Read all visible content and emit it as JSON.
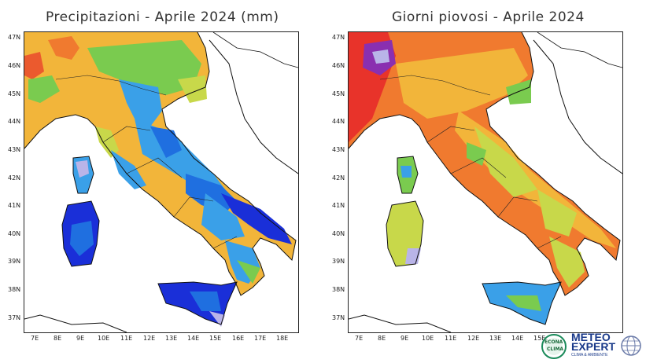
{
  "maps": [
    {
      "title": "Precipitazioni - Aprile 2024 (mm)",
      "lat_labels": [
        "47N",
        "46N",
        "45N",
        "44N",
        "43N",
        "42N",
        "41N",
        "40N",
        "39N",
        "38N",
        "37N"
      ],
      "lon_labels": [
        "7E",
        "8E",
        "9E",
        "10E",
        "11E",
        "12E",
        "13E",
        "14E",
        "15E",
        "16E",
        "17E",
        "18E"
      ]
    },
    {
      "title": "Giorni piovosi - Aprile 2024",
      "lat_labels": [
        "47N",
        "46N",
        "45N",
        "44N",
        "43N",
        "42N",
        "41N",
        "40N",
        "39N",
        "38N",
        "37N"
      ],
      "lon_labels": [
        "7E",
        "8E",
        "9E",
        "10E",
        "11E",
        "12E",
        "13E",
        "14E",
        "15E"
      ]
    }
  ],
  "colors": {
    "red": "#e8332a",
    "orange": "#f07a2f",
    "yellow_orange": "#f2b53a",
    "yellow_green": "#c8d84a",
    "green": "#7acb4f",
    "light_blue": "#3aa0e8",
    "blue": "#1f6fe0",
    "dark_blue": "#1a2fd8",
    "lavender": "#b9b4e8",
    "purple": "#8a2fb0"
  },
  "logos": {
    "econa_line1": "ECONA",
    "econa_line2": "CLIMA",
    "meteo_line1": "METEO",
    "meteo_line2": "EXPERT",
    "meteo_sub": "CLIMA & AMBIENTE"
  }
}
